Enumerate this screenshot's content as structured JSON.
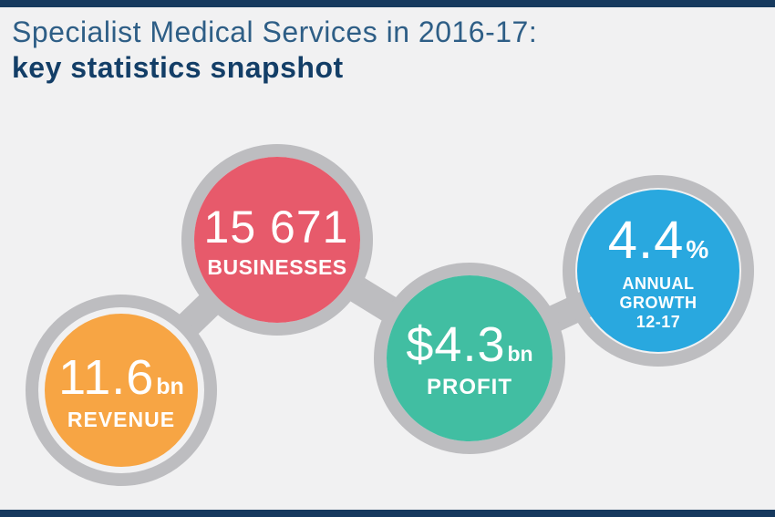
{
  "header": {
    "title_line1": "Specialist Medical Services in 2016-17:",
    "title_line2": "key statistics snapshot"
  },
  "colors": {
    "background": "#F1F1F2",
    "border_bar_navy": "#16395E",
    "title_primary_navy": "#2E5E86",
    "title_bold_navy": "#133E67",
    "ring_gray": "#BDBDC0",
    "text_on_disc": "#FFFFFF",
    "revenue_orange": "#F7A544",
    "businesses_red": "#E75A6B",
    "profit_teal": "#41BEA2",
    "growth_blue": "#29A8DF"
  },
  "stats": [
    {
      "id": "revenue",
      "value": "11.6",
      "suffix": "bn",
      "label": "REVENUE"
    },
    {
      "id": "businesses",
      "value": "15 671",
      "suffix": "",
      "label": "BUSINESSES"
    },
    {
      "id": "profit",
      "value": "$4.3",
      "suffix": "bn",
      "label": "PROFIT"
    },
    {
      "id": "growth",
      "value": "4.4",
      "suffix": "%",
      "label_lines": [
        "ANNUAL",
        "GROWTH",
        "12-17"
      ]
    }
  ]
}
